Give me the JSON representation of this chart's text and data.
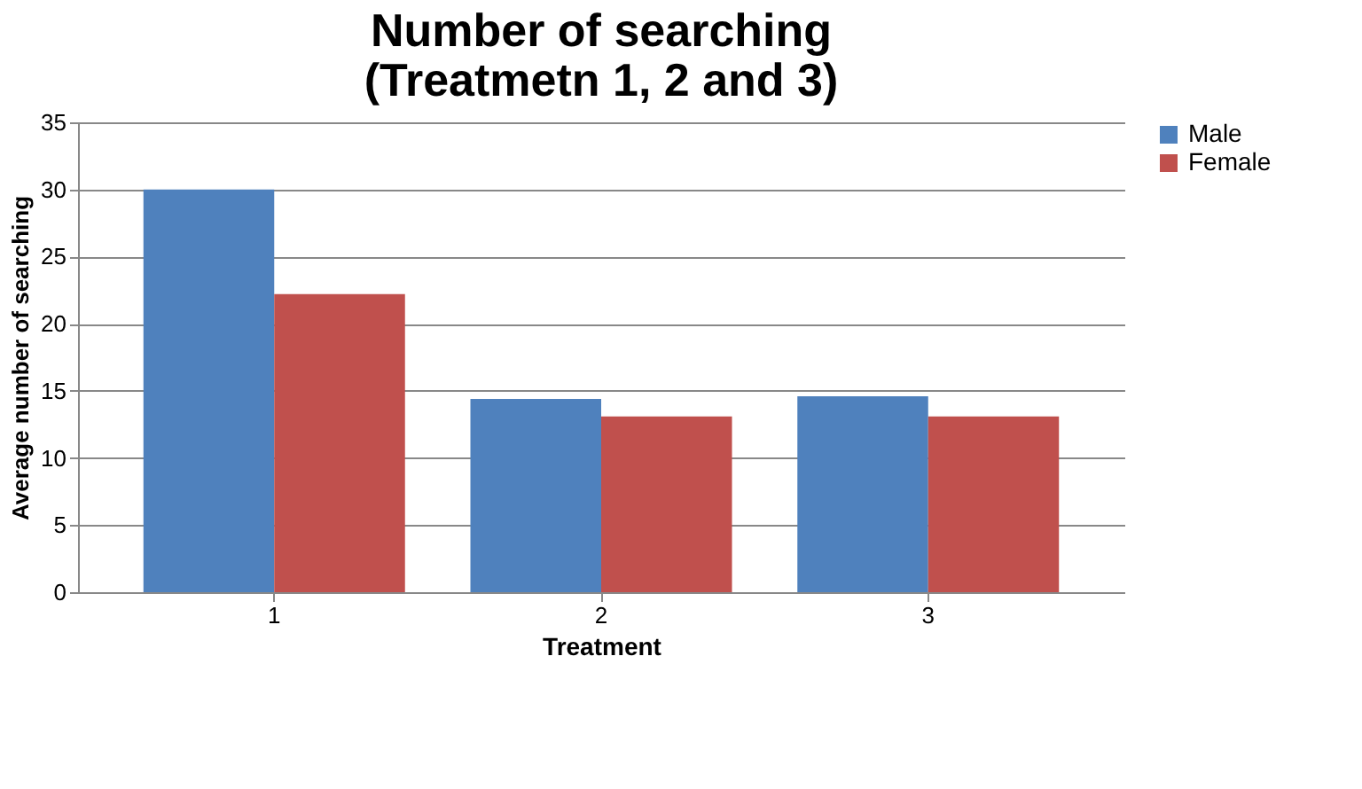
{
  "chart_data": {
    "type": "bar",
    "title": "Number of searching\n(Treatmetn 1, 2 and 3)",
    "xlabel": "Treatment",
    "ylabel": "Average number of searching",
    "categories": [
      "1",
      "2",
      "3"
    ],
    "series": [
      {
        "name": "Male",
        "color": "#4f81bd",
        "values": [
          30.0,
          14.4,
          14.6
        ]
      },
      {
        "name": "Female",
        "color": "#c0504d",
        "values": [
          22.2,
          13.1,
          13.1
        ]
      }
    ],
    "ylim": [
      0,
      35
    ],
    "yticks": [
      0,
      5,
      10,
      15,
      20,
      25,
      30,
      35
    ],
    "grid": "y",
    "legend": "right"
  }
}
